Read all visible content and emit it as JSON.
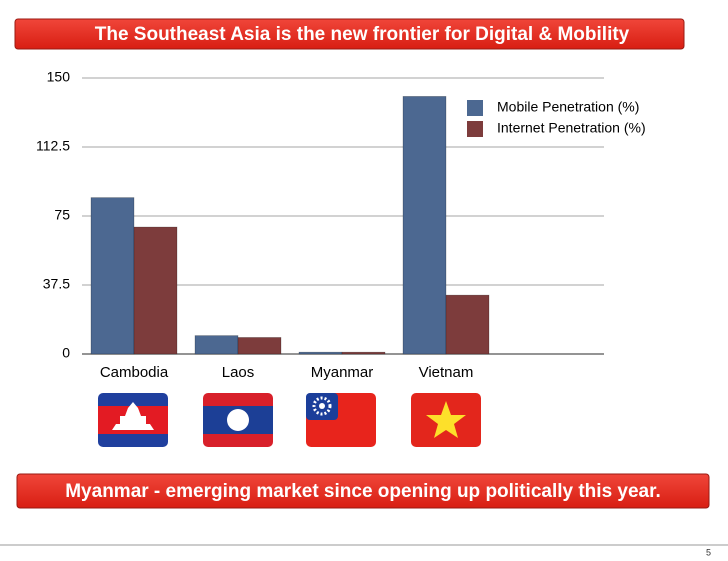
{
  "chart_data": {
    "type": "bar",
    "title": "The Southeast Asia is the new frontier for Digital & Mobility",
    "categories": [
      "Cambodia",
      "Laos",
      "Myanmar",
      "Vietnam"
    ],
    "series": [
      {
        "name": "Mobile Penetration (%)",
        "color": "#4c6891",
        "values": [
          85,
          10,
          1,
          140
        ]
      },
      {
        "name": "Internet Penetration (%)",
        "color": "#7d3c3c",
        "values": [
          69,
          9,
          1,
          32
        ]
      }
    ],
    "ylim": [
      0,
      150
    ],
    "yticks": [
      0,
      37.5,
      75,
      112.5,
      150
    ],
    "grid": true,
    "legend": "top-right",
    "annotation": "Myanmar - emerging market since opening up politically this year."
  },
  "page_number": "5"
}
